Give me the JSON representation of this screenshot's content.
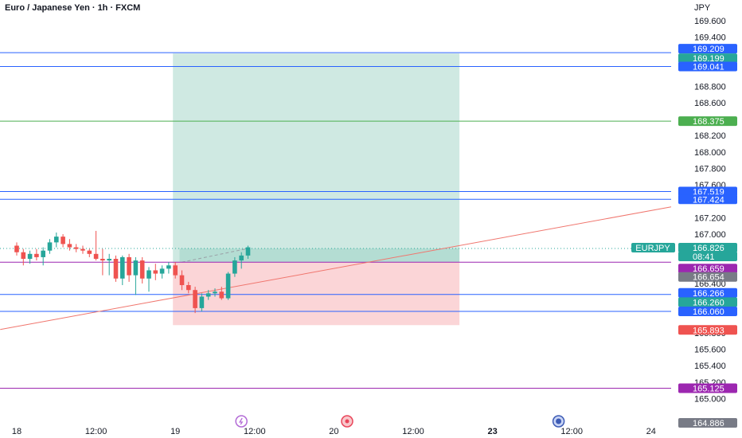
{
  "header": {
    "title": "Euro / Japanese Yen · 1h · FXCM",
    "currency": "JPY"
  },
  "colors": {
    "up": "#26a69a",
    "down": "#ef5350",
    "blue_line": "#2962ff",
    "green_line": "#4caf50",
    "purple_line": "#9c27b0",
    "profit_zone": "#cfe9e2",
    "loss_zone": "#fbd5d7",
    "trend": "#f0766e"
  },
  "chart_data": {
    "type": "candlestick",
    "symbol": "EURJPY",
    "timeframe": "1h",
    "y_axis": {
      "ylim": [
        164.81,
        169.85
      ],
      "ticks": [
        "169.600",
        "169.400",
        "168.800",
        "168.600",
        "168.200",
        "168.000",
        "167.800",
        "167.600",
        "167.200",
        "167.000",
        "166.400",
        "165.800",
        "165.600",
        "165.400",
        "165.200",
        "165.000"
      ]
    },
    "x_axis": {
      "ticks": [
        {
          "label": "18",
          "bar": 0
        },
        {
          "label": "12:00",
          "bar": 12
        },
        {
          "label": "19",
          "bar": 24
        },
        {
          "label": "12:00",
          "bar": 36
        },
        {
          "label": "20",
          "bar": 48
        },
        {
          "label": "12:00",
          "bar": 60
        },
        {
          "label": "23",
          "bar": 72
        },
        {
          "label": "12:00",
          "bar": 84
        },
        {
          "label": "24",
          "bar": 96
        }
      ]
    },
    "candles": [
      {
        "o": 166.86,
        "h": 166.9,
        "l": 166.74,
        "c": 166.78
      },
      {
        "o": 166.78,
        "h": 166.82,
        "l": 166.62,
        "c": 166.7
      },
      {
        "o": 166.7,
        "h": 166.8,
        "l": 166.64,
        "c": 166.76
      },
      {
        "o": 166.76,
        "h": 166.82,
        "l": 166.68,
        "c": 166.72
      },
      {
        "o": 166.72,
        "h": 166.84,
        "l": 166.62,
        "c": 166.8
      },
      {
        "o": 166.8,
        "h": 166.94,
        "l": 166.76,
        "c": 166.9
      },
      {
        "o": 166.9,
        "h": 167.02,
        "l": 166.84,
        "c": 166.97
      },
      {
        "o": 166.97,
        "h": 167.0,
        "l": 166.84,
        "c": 166.88
      },
      {
        "o": 166.88,
        "h": 166.94,
        "l": 166.8,
        "c": 166.84
      },
      {
        "o": 166.84,
        "h": 166.88,
        "l": 166.78,
        "c": 166.82
      },
      {
        "o": 166.82,
        "h": 166.86,
        "l": 166.76,
        "c": 166.8
      },
      {
        "o": 166.8,
        "h": 166.82,
        "l": 166.72,
        "c": 166.76
      },
      {
        "o": 166.76,
        "h": 167.04,
        "l": 166.68,
        "c": 166.7
      },
      {
        "o": 166.7,
        "h": 166.82,
        "l": 166.5,
        "c": 166.68
      },
      {
        "o": 166.68,
        "h": 166.76,
        "l": 166.5,
        "c": 166.7
      },
      {
        "o": 166.7,
        "h": 166.74,
        "l": 166.42,
        "c": 166.46
      },
      {
        "o": 166.46,
        "h": 166.74,
        "l": 166.38,
        "c": 166.72
      },
      {
        "o": 166.72,
        "h": 166.76,
        "l": 166.42,
        "c": 166.5
      },
      {
        "o": 166.5,
        "h": 166.72,
        "l": 166.26,
        "c": 166.68
      },
      {
        "o": 166.68,
        "h": 166.72,
        "l": 166.4,
        "c": 166.46
      },
      {
        "o": 166.46,
        "h": 166.6,
        "l": 166.3,
        "c": 166.56
      },
      {
        "o": 166.56,
        "h": 166.64,
        "l": 166.44,
        "c": 166.52
      },
      {
        "o": 166.52,
        "h": 166.62,
        "l": 166.46,
        "c": 166.58
      },
      {
        "o": 166.58,
        "h": 166.66,
        "l": 166.52,
        "c": 166.62
      },
      {
        "o": 166.62,
        "h": 166.66,
        "l": 166.46,
        "c": 166.5
      },
      {
        "o": 166.5,
        "h": 166.56,
        "l": 166.32,
        "c": 166.38
      },
      {
        "o": 166.38,
        "h": 166.42,
        "l": 166.28,
        "c": 166.32
      },
      {
        "o": 166.32,
        "h": 166.36,
        "l": 166.04,
        "c": 166.1
      },
      {
        "o": 166.1,
        "h": 166.28,
        "l": 166.06,
        "c": 166.24
      },
      {
        "o": 166.24,
        "h": 166.32,
        "l": 166.2,
        "c": 166.28
      },
      {
        "o": 166.28,
        "h": 166.34,
        "l": 166.24,
        "c": 166.3
      },
      {
        "o": 166.3,
        "h": 166.36,
        "l": 166.2,
        "c": 166.22
      },
      {
        "o": 166.22,
        "h": 166.54,
        "l": 166.2,
        "c": 166.52
      },
      {
        "o": 166.52,
        "h": 166.72,
        "l": 166.48,
        "c": 166.68
      },
      {
        "o": 166.68,
        "h": 166.78,
        "l": 166.58,
        "c": 166.74
      },
      {
        "o": 166.74,
        "h": 166.86,
        "l": 166.7,
        "c": 166.84
      }
    ],
    "price_lines": [
      {
        "price": 169.209,
        "color": "#2962ff"
      },
      {
        "price": 169.041,
        "color": "#2962ff"
      },
      {
        "price": 168.375,
        "color": "#4caf50"
      },
      {
        "price": 167.519,
        "color": "#2962ff"
      },
      {
        "price": 167.424,
        "color": "#2962ff"
      },
      {
        "price": 166.659,
        "color": "#9c27b0"
      },
      {
        "price": 166.266,
        "color": "#2962ff"
      },
      {
        "price": 166.06,
        "color": "#2962ff"
      },
      {
        "price": 165.125,
        "color": "#9c27b0"
      }
    ],
    "position": {
      "entry": 166.659,
      "take_profit": 169.199,
      "stop_loss": 165.893,
      "bar_start": 24,
      "bar_end": 67
    },
    "trendline": {
      "p1": {
        "bar": -2.5,
        "price": 165.84
      },
      "p2": {
        "bar": 105,
        "price": 167.42
      }
    },
    "badges": [
      {
        "text": "169.209",
        "price": 169.209,
        "color": "#2962ff"
      },
      {
        "text": "169.199",
        "price": 169.199,
        "color": "#26a69a"
      },
      {
        "text": "169.041",
        "price": 169.041,
        "color": "#2962ff"
      },
      {
        "text": "168.375",
        "price": 168.375,
        "color": "#4caf50"
      },
      {
        "text": "167.519",
        "price": 167.519,
        "color": "#2962ff"
      },
      {
        "text": "167.424",
        "price": 167.424,
        "color": "#2962ff"
      },
      {
        "text": "166.826",
        "price": 166.826,
        "color": "#26a69a"
      },
      {
        "text": "08:41",
        "price": 166.826,
        "color": "#26a69a"
      },
      {
        "text": "166.659",
        "price": 166.659,
        "color": "#9c27b0"
      },
      {
        "text": "166.654",
        "price": 166.654,
        "color": "#787b86"
      },
      {
        "text": "166.266",
        "price": 166.266,
        "color": "#2962ff"
      },
      {
        "text": "166.260",
        "price": 166.26,
        "color": "#26a69a"
      },
      {
        "text": "166.060",
        "price": 166.06,
        "color": "#2962ff"
      },
      {
        "text": "165.893",
        "price": 165.893,
        "color": "#ef5350"
      },
      {
        "text": "165.125",
        "price": 165.125,
        "color": "#9c27b0"
      },
      {
        "text": "164.886",
        "price": 164.886,
        "color": "#787b86"
      }
    ],
    "symbol_label": {
      "text": "EURJPY",
      "price": 166.826
    },
    "current_price": 166.826,
    "events": [
      {
        "name": "lightning-icon",
        "bar": 34
      },
      {
        "name": "target-icon",
        "bar": 50
      },
      {
        "name": "globe-icon",
        "bar": 82
      }
    ]
  }
}
